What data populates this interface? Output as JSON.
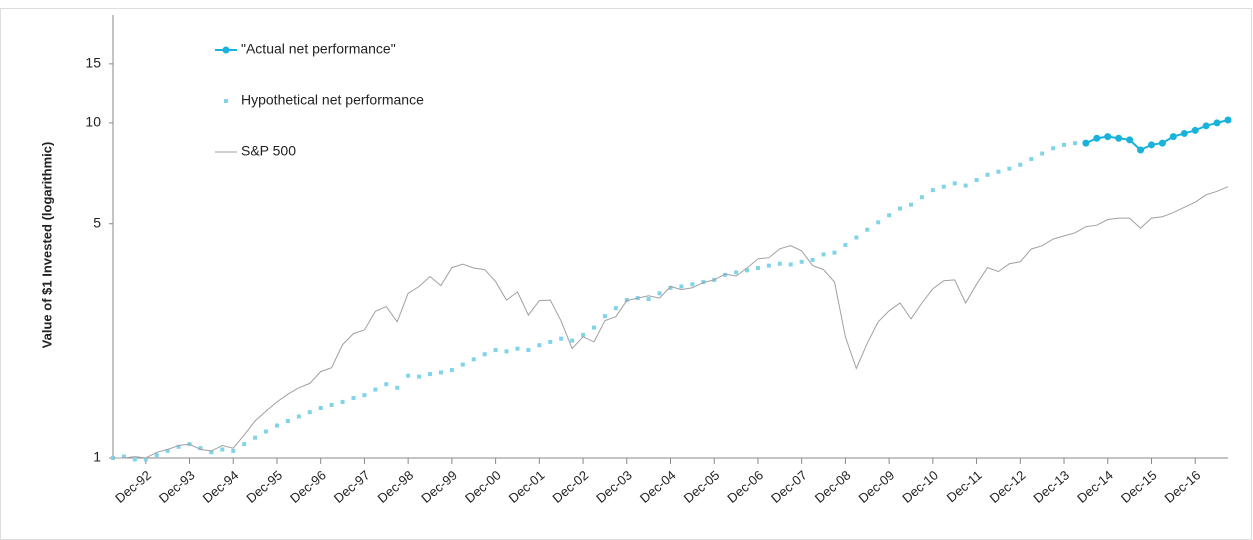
{
  "chart_data": {
    "type": "line",
    "y_label": "Value of $1 Invested (logarithmic)",
    "log_scale": true,
    "grid": false,
    "legend": "top-left",
    "categories": [
      null,
      null,
      null,
      "Dec-92",
      null,
      null,
      null,
      "Dec-93",
      null,
      null,
      null,
      "Dec-94",
      null,
      null,
      null,
      "Dec-95",
      null,
      null,
      null,
      "Dec-96",
      null,
      null,
      null,
      "Dec-97",
      null,
      null,
      null,
      "Dec-98",
      null,
      null,
      null,
      "Dec-99",
      null,
      null,
      null,
      "Dec-00",
      null,
      null,
      null,
      "Dec-01",
      null,
      null,
      null,
      "Dec-02",
      null,
      null,
      null,
      "Dec-03",
      null,
      null,
      null,
      "Dec-04",
      null,
      null,
      null,
      "Dec-05",
      null,
      null,
      null,
      "Dec-06",
      null,
      null,
      null,
      "Dec-07",
      null,
      null,
      null,
      "Dec-08",
      null,
      null,
      null,
      "Dec-09",
      null,
      null,
      null,
      "Dec-10",
      null,
      null,
      null,
      "Dec-11",
      null,
      null,
      null,
      "Dec-12",
      null,
      null,
      null,
      "Dec-13",
      null,
      null,
      null,
      "Dec-14",
      null,
      null,
      null,
      "Dec-15",
      null,
      null,
      null,
      "Dec-16",
      null,
      null,
      null
    ],
    "ylim": [
      1,
      20
    ],
    "yticks": [
      1,
      5,
      10,
      15
    ],
    "series": [
      {
        "name": "\"Actual net performance\"",
        "color": "#19b2db",
        "line": true,
        "marker": true,
        "values": [
          null,
          null,
          null,
          null,
          null,
          null,
          null,
          null,
          null,
          null,
          null,
          null,
          null,
          null,
          null,
          null,
          null,
          null,
          null,
          null,
          null,
          null,
          null,
          null,
          null,
          null,
          null,
          null,
          null,
          null,
          null,
          null,
          null,
          null,
          null,
          null,
          null,
          null,
          null,
          null,
          null,
          null,
          null,
          null,
          null,
          null,
          null,
          null,
          null,
          null,
          null,
          null,
          null,
          null,
          null,
          null,
          null,
          null,
          null,
          null,
          null,
          null,
          null,
          null,
          null,
          null,
          null,
          null,
          null,
          null,
          null,
          null,
          null,
          null,
          null,
          null,
          null,
          null,
          null,
          null,
          null,
          null,
          null,
          null,
          null,
          null,
          null,
          null,
          null,
          8.7,
          9.0,
          9.1,
          9.0,
          8.9,
          8.3,
          8.6,
          8.7,
          9.1,
          9.3,
          9.5,
          9.8,
          10.0,
          10.2
        ]
      },
      {
        "name": "Hypothetical net performance",
        "color": "#7fd4e9",
        "line": false,
        "marker": true,
        "values": [
          1.0,
          1.01,
          0.99,
          0.99,
          1.02,
          1.05,
          1.08,
          1.1,
          1.07,
          1.04,
          1.06,
          1.05,
          1.1,
          1.15,
          1.2,
          1.25,
          1.29,
          1.33,
          1.37,
          1.41,
          1.44,
          1.47,
          1.51,
          1.54,
          1.6,
          1.66,
          1.62,
          1.76,
          1.75,
          1.78,
          1.8,
          1.83,
          1.9,
          1.97,
          2.04,
          2.1,
          2.08,
          2.12,
          2.1,
          2.17,
          2.22,
          2.27,
          2.24,
          2.33,
          2.45,
          2.65,
          2.8,
          2.96,
          3.0,
          2.98,
          3.1,
          3.22,
          3.25,
          3.3,
          3.35,
          3.4,
          3.52,
          3.58,
          3.63,
          3.69,
          3.75,
          3.8,
          3.78,
          3.85,
          3.9,
          4.05,
          4.1,
          4.32,
          4.55,
          4.8,
          5.05,
          5.3,
          5.55,
          5.7,
          6.0,
          6.3,
          6.45,
          6.6,
          6.5,
          6.75,
          7.0,
          7.15,
          7.3,
          7.5,
          7.8,
          8.1,
          8.4,
          8.6,
          8.7,
          null,
          null,
          null,
          null,
          null,
          null,
          null,
          null,
          null,
          null,
          null,
          null,
          null,
          null
        ]
      },
      {
        "name": "S&P 500",
        "color": "#a0a0a0",
        "line": true,
        "marker": false,
        "values": [
          1.0,
          1.0,
          1.01,
          1.0,
          1.04,
          1.06,
          1.09,
          1.1,
          1.06,
          1.05,
          1.09,
          1.07,
          1.17,
          1.29,
          1.38,
          1.47,
          1.55,
          1.62,
          1.67,
          1.81,
          1.86,
          2.18,
          2.35,
          2.41,
          2.74,
          2.83,
          2.55,
          3.1,
          3.25,
          3.48,
          3.27,
          3.7,
          3.79,
          3.69,
          3.65,
          3.36,
          2.96,
          3.13,
          2.67,
          2.95,
          2.96,
          2.56,
          2.12,
          2.3,
          2.22,
          2.57,
          2.64,
          2.95,
          3.0,
          3.05,
          3.0,
          3.25,
          3.18,
          3.22,
          3.34,
          3.4,
          3.54,
          3.49,
          3.69,
          3.93,
          3.96,
          4.21,
          4.3,
          4.15,
          3.75,
          3.65,
          3.35,
          2.3,
          1.85,
          2.2,
          2.55,
          2.75,
          2.9,
          2.6,
          2.9,
          3.2,
          3.38,
          3.4,
          2.9,
          3.3,
          3.7,
          3.6,
          3.8,
          3.85,
          4.2,
          4.3,
          4.5,
          4.6,
          4.7,
          4.9,
          4.95,
          5.15,
          5.2,
          5.2,
          4.85,
          5.2,
          5.25,
          5.4,
          5.6,
          5.8,
          6.1,
          6.25,
          6.45
        ]
      }
    ]
  }
}
